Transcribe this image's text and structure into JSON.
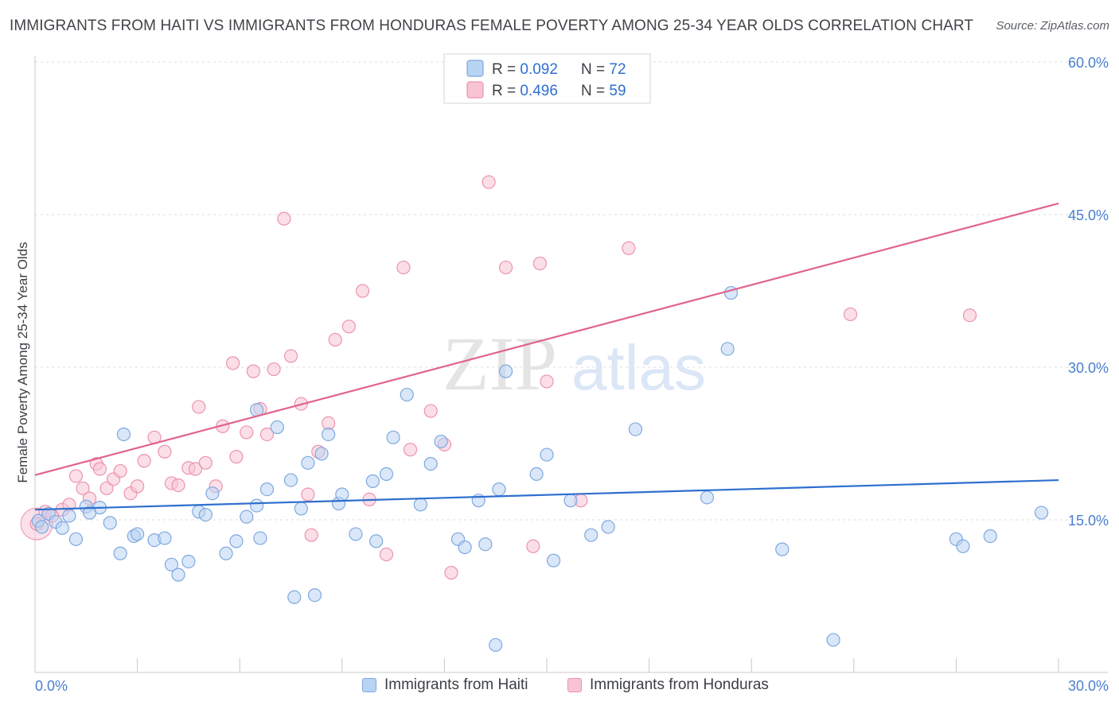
{
  "header": {
    "title": "IMMIGRANTS FROM HAITI VS IMMIGRANTS FROM HONDURAS FEMALE POVERTY AMONG 25-34 YEAR OLDS CORRELATION CHART",
    "source": "Source: ZipAtlas.com"
  },
  "watermark": {
    "part1": "ZIP",
    "part2": "atlas"
  },
  "legend_top": {
    "rows": [
      {
        "r_label": "R = ",
        "r_value": "0.092",
        "n_label": "N = ",
        "n_value": "72"
      },
      {
        "r_label": "R = ",
        "r_value": "0.496",
        "n_label": "N = ",
        "n_value": "59"
      }
    ]
  },
  "colors": {
    "haiti_fill": "#b9d3f3",
    "haiti_stroke": "#7fa8e0",
    "haiti_line": "#2e6fcf",
    "honduras_fill": "#f8c4d3",
    "honduras_stroke": "#ec93ad",
    "honduras_line": "#e0638c",
    "axis_text": "#4a7fd0",
    "grid": "#dcdcdc"
  },
  "chart_data": {
    "type": "scatter",
    "ylabel": "Female Poverty Among 25-34 Year Olds",
    "xlim": [
      0,
      30
    ],
    "ylim": [
      0,
      60
    ],
    "x_tick_labels": [
      "0.0%",
      "30.0%"
    ],
    "y_ticks": [
      15,
      30,
      45,
      60
    ],
    "y_tick_labels": [
      "15.0%",
      "30.0%",
      "45.0%",
      "60.0%"
    ],
    "grid": true,
    "legend_placement": "bottom",
    "series": [
      {
        "name": "Immigrants from Haiti",
        "R": 0.092,
        "N": 72,
        "trend": {
          "x": [
            0,
            30
          ],
          "y": [
            16.0,
            18.9
          ]
        },
        "points": [
          [
            0.1,
            14.9
          ],
          [
            0.2,
            14.3
          ],
          [
            0.4,
            15.6
          ],
          [
            0.6,
            14.8
          ],
          [
            0.8,
            14.2
          ],
          [
            1.0,
            15.4
          ],
          [
            1.2,
            13.1
          ],
          [
            1.5,
            16.3
          ],
          [
            1.9,
            16.2
          ],
          [
            1.6,
            15.7
          ],
          [
            2.2,
            14.7
          ],
          [
            2.5,
            11.7
          ],
          [
            2.6,
            23.4
          ],
          [
            2.9,
            13.4
          ],
          [
            3.0,
            13.6
          ],
          [
            3.5,
            13.0
          ],
          [
            3.8,
            13.2
          ],
          [
            4.0,
            10.6
          ],
          [
            4.2,
            9.6
          ],
          [
            4.5,
            10.9
          ],
          [
            4.8,
            15.8
          ],
          [
            5.0,
            15.5
          ],
          [
            5.2,
            17.6
          ],
          [
            5.6,
            11.7
          ],
          [
            5.9,
            12.9
          ],
          [
            6.2,
            15.3
          ],
          [
            6.5,
            16.4
          ],
          [
            6.5,
            25.8
          ],
          [
            6.6,
            13.2
          ],
          [
            6.8,
            18.0
          ],
          [
            7.1,
            24.1
          ],
          [
            7.5,
            18.9
          ],
          [
            7.6,
            7.4
          ],
          [
            7.8,
            16.1
          ],
          [
            8.0,
            20.6
          ],
          [
            8.2,
            7.6
          ],
          [
            8.4,
            21.5
          ],
          [
            8.6,
            23.4
          ],
          [
            8.9,
            16.6
          ],
          [
            9.0,
            17.5
          ],
          [
            9.4,
            13.6
          ],
          [
            9.9,
            18.8
          ],
          [
            10.0,
            12.9
          ],
          [
            10.3,
            19.5
          ],
          [
            10.5,
            23.1
          ],
          [
            10.9,
            27.3
          ],
          [
            11.3,
            16.5
          ],
          [
            11.6,
            20.5
          ],
          [
            11.9,
            22.7
          ],
          [
            12.4,
            13.1
          ],
          [
            12.6,
            12.3
          ],
          [
            13.0,
            16.9
          ],
          [
            13.2,
            12.6
          ],
          [
            13.5,
            2.7
          ],
          [
            13.6,
            18.0
          ],
          [
            13.8,
            29.6
          ],
          [
            14.7,
            19.5
          ],
          [
            15.0,
            21.4
          ],
          [
            15.2,
            11.0
          ],
          [
            15.7,
            16.9
          ],
          [
            16.3,
            13.5
          ],
          [
            16.8,
            14.3
          ],
          [
            17.6,
            23.9
          ],
          [
            19.7,
            17.2
          ],
          [
            20.3,
            31.8
          ],
          [
            20.4,
            37.3
          ],
          [
            21.9,
            12.1
          ],
          [
            23.4,
            3.2
          ],
          [
            27.0,
            13.1
          ],
          [
            27.2,
            12.4
          ],
          [
            28.0,
            13.4
          ],
          [
            29.5,
            15.7
          ]
        ]
      },
      {
        "name": "Immigrants from Honduras",
        "R": 0.496,
        "N": 59,
        "trend": {
          "x": [
            0,
            30
          ],
          "y": [
            19.4,
            46.1
          ]
        },
        "points": [
          [
            0.05,
            14.6
          ],
          [
            0.3,
            15.8
          ],
          [
            0.5,
            15.4
          ],
          [
            0.8,
            16.0
          ],
          [
            1.0,
            16.5
          ],
          [
            1.2,
            19.3
          ],
          [
            1.4,
            18.1
          ],
          [
            1.6,
            17.1
          ],
          [
            1.8,
            20.5
          ],
          [
            1.9,
            20.0
          ],
          [
            2.1,
            18.1
          ],
          [
            2.3,
            19.0
          ],
          [
            2.5,
            19.8
          ],
          [
            2.8,
            17.6
          ],
          [
            3.0,
            18.3
          ],
          [
            3.2,
            20.8
          ],
          [
            3.5,
            23.1
          ],
          [
            3.8,
            21.7
          ],
          [
            4.0,
            18.6
          ],
          [
            4.2,
            18.4
          ],
          [
            4.5,
            20.1
          ],
          [
            4.7,
            20.0
          ],
          [
            4.8,
            26.1
          ],
          [
            5.0,
            20.6
          ],
          [
            5.3,
            18.3
          ],
          [
            5.5,
            24.2
          ],
          [
            5.8,
            30.4
          ],
          [
            5.9,
            21.2
          ],
          [
            6.2,
            23.6
          ],
          [
            6.4,
            29.6
          ],
          [
            6.6,
            25.9
          ],
          [
            6.8,
            23.4
          ],
          [
            7.0,
            29.8
          ],
          [
            7.3,
            44.6
          ],
          [
            7.5,
            31.1
          ],
          [
            7.8,
            26.4
          ],
          [
            8.0,
            17.5
          ],
          [
            8.1,
            13.5
          ],
          [
            8.3,
            21.7
          ],
          [
            8.6,
            24.5
          ],
          [
            8.8,
            32.7
          ],
          [
            9.2,
            34.0
          ],
          [
            9.6,
            37.5
          ],
          [
            9.8,
            17.0
          ],
          [
            10.3,
            11.6
          ],
          [
            10.8,
            39.8
          ],
          [
            11.0,
            21.9
          ],
          [
            11.6,
            25.7
          ],
          [
            12.0,
            22.4
          ],
          [
            12.2,
            9.8
          ],
          [
            13.3,
            48.2
          ],
          [
            13.8,
            39.8
          ],
          [
            14.8,
            40.2
          ],
          [
            15.0,
            28.6
          ],
          [
            16.0,
            16.9
          ],
          [
            14.6,
            12.4
          ],
          [
            17.4,
            41.7
          ],
          [
            23.9,
            35.2
          ],
          [
            27.4,
            35.1
          ]
        ]
      }
    ]
  },
  "legend_bottom": {
    "haiti_label": "Immigrants from Haiti",
    "honduras_label": "Immigrants from Honduras"
  }
}
